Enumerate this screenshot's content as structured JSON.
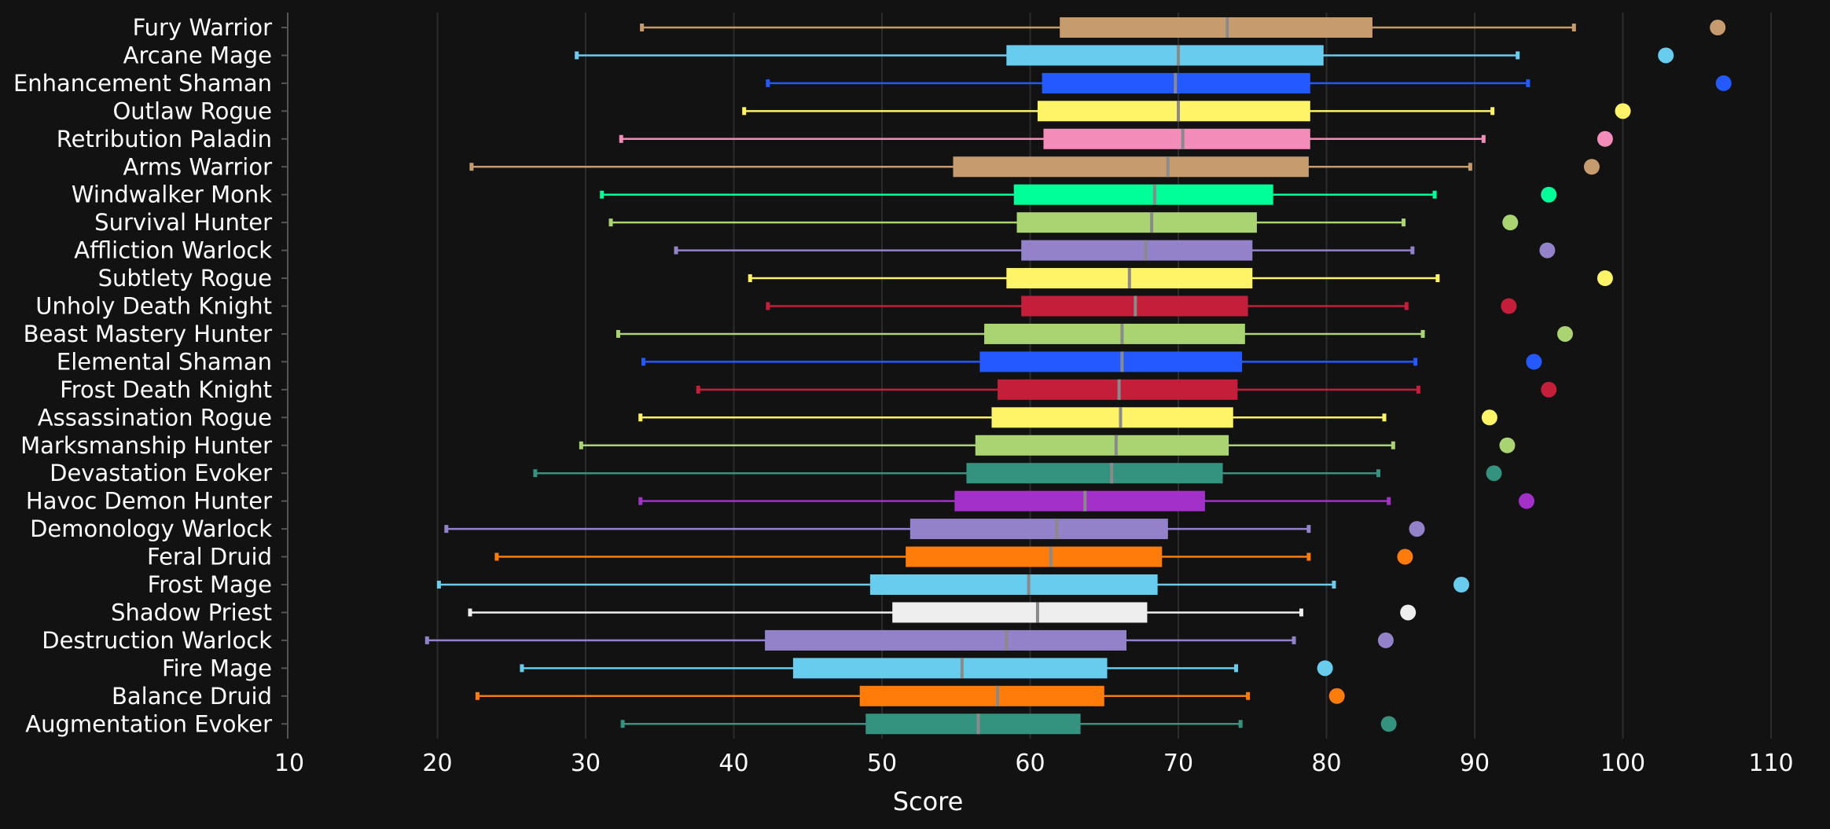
{
  "chart_data": {
    "type": "boxplot",
    "xlabel": "Score",
    "xlim": [
      10,
      110
    ],
    "xticks": [
      "10",
      "20",
      "30",
      "40",
      "50",
      "60",
      "70",
      "80",
      "90",
      "100",
      "110"
    ],
    "grid": true,
    "background": "#121212",
    "series": [
      {
        "name": "Fury Warrior",
        "color": "#c69b6d",
        "min": 33.8,
        "q1": 62.0,
        "median": 73.3,
        "q3": 83.1,
        "max": 96.7,
        "max_point": 106.4
      },
      {
        "name": "Arcane Mage",
        "color": "#68ccef",
        "min": 29.4,
        "q1": 58.4,
        "median": 70.0,
        "q3": 79.8,
        "max": 92.9,
        "max_point": 102.9
      },
      {
        "name": "Enhancement Shaman",
        "color": "#2459ff",
        "min": 42.3,
        "q1": 60.8,
        "median": 69.8,
        "q3": 78.9,
        "max": 93.6,
        "max_point": 106.8
      },
      {
        "name": "Outlaw Rogue",
        "color": "#fff468",
        "min": 40.7,
        "q1": 60.5,
        "median": 70.0,
        "q3": 78.9,
        "max": 91.2,
        "max_point": 100.0
      },
      {
        "name": "Retribution Paladin",
        "color": "#f48cba",
        "min": 32.4,
        "q1": 60.9,
        "median": 70.3,
        "q3": 78.9,
        "max": 90.6,
        "max_point": 98.8
      },
      {
        "name": "Arms Warrior",
        "color": "#c69b6d",
        "min": 22.3,
        "q1": 54.8,
        "median": 69.3,
        "q3": 78.8,
        "max": 89.7,
        "max_point": 97.9
      },
      {
        "name": "Windwalker Monk",
        "color": "#00ff98",
        "min": 31.1,
        "q1": 58.9,
        "median": 68.4,
        "q3": 76.4,
        "max": 87.3,
        "max_point": 95.0
      },
      {
        "name": "Survival Hunter",
        "color": "#aad372",
        "min": 31.7,
        "q1": 59.1,
        "median": 68.2,
        "q3": 75.3,
        "max": 85.2,
        "max_point": 92.4
      },
      {
        "name": "Affliction Warlock",
        "color": "#9382c9",
        "min": 36.1,
        "q1": 59.4,
        "median": 67.8,
        "q3": 75.0,
        "max": 85.8,
        "max_point": 94.9
      },
      {
        "name": "Subtlety Rogue",
        "color": "#fff468",
        "min": 41.1,
        "q1": 58.4,
        "median": 66.7,
        "q3": 75.0,
        "max": 87.5,
        "max_point": 98.8
      },
      {
        "name": "Unholy Death Knight",
        "color": "#c41e3a",
        "min": 42.3,
        "q1": 59.4,
        "median": 67.1,
        "q3": 74.7,
        "max": 85.4,
        "max_point": 92.3
      },
      {
        "name": "Beast Mastery Hunter",
        "color": "#aad372",
        "min": 32.2,
        "q1": 56.9,
        "median": 66.2,
        "q3": 74.5,
        "max": 86.5,
        "max_point": 96.1
      },
      {
        "name": "Elemental Shaman",
        "color": "#2459ff",
        "min": 33.9,
        "q1": 56.6,
        "median": 66.2,
        "q3": 74.3,
        "max": 86.0,
        "max_point": 94.0
      },
      {
        "name": "Frost Death Knight",
        "color": "#c41e3a",
        "min": 37.6,
        "q1": 57.8,
        "median": 66.0,
        "q3": 74.0,
        "max": 86.2,
        "max_point": 95.0
      },
      {
        "name": "Assassination Rogue",
        "color": "#fff468",
        "min": 33.7,
        "q1": 57.4,
        "median": 66.1,
        "q3": 73.7,
        "max": 83.9,
        "max_point": 91.0
      },
      {
        "name": "Marksmanship Hunter",
        "color": "#aad372",
        "min": 29.7,
        "q1": 56.3,
        "median": 65.8,
        "q3": 73.4,
        "max": 84.5,
        "max_point": 92.2
      },
      {
        "name": "Devastation Evoker",
        "color": "#33937f",
        "min": 26.6,
        "q1": 55.7,
        "median": 65.5,
        "q3": 73.0,
        "max": 83.5,
        "max_point": 91.3
      },
      {
        "name": "Havoc Demon Hunter",
        "color": "#a330c9",
        "min": 33.7,
        "q1": 54.9,
        "median": 63.7,
        "q3": 71.8,
        "max": 84.2,
        "max_point": 93.5
      },
      {
        "name": "Demonology Warlock",
        "color": "#9382c9",
        "min": 20.6,
        "q1": 51.9,
        "median": 61.8,
        "q3": 69.3,
        "max": 78.8,
        "max_point": 86.1
      },
      {
        "name": "Feral Druid",
        "color": "#ff7c0a",
        "min": 24.0,
        "q1": 51.6,
        "median": 61.4,
        "q3": 68.9,
        "max": 78.8,
        "max_point": 85.3
      },
      {
        "name": "Frost Mage",
        "color": "#68ccef",
        "min": 20.1,
        "q1": 49.2,
        "median": 59.9,
        "q3": 68.6,
        "max": 80.5,
        "max_point": 89.1
      },
      {
        "name": "Shadow Priest",
        "color": "#eeeeee",
        "min": 22.2,
        "q1": 50.7,
        "median": 60.5,
        "q3": 67.9,
        "max": 78.3,
        "max_point": 85.5
      },
      {
        "name": "Destruction Warlock",
        "color": "#9382c9",
        "min": 19.3,
        "q1": 42.1,
        "median": 58.4,
        "q3": 66.5,
        "max": 77.8,
        "max_point": 84.0
      },
      {
        "name": "Fire Mage",
        "color": "#68ccef",
        "min": 25.7,
        "q1": 44.0,
        "median": 55.4,
        "q3": 65.2,
        "max": 73.9,
        "max_point": 79.9
      },
      {
        "name": "Balance Druid",
        "color": "#ff7c0a",
        "min": 22.7,
        "q1": 48.5,
        "median": 57.8,
        "q3": 65.0,
        "max": 74.7,
        "max_point": 80.7
      },
      {
        "name": "Augmentation Evoker",
        "color": "#33937f",
        "min": 32.5,
        "q1": 48.9,
        "median": 56.5,
        "q3": 63.4,
        "max": 74.2,
        "max_point": 84.2
      }
    ]
  }
}
